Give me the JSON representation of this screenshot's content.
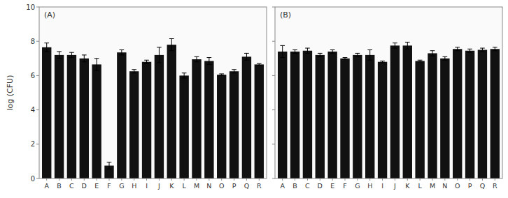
{
  "chart_data": [
    {
      "type": "bar",
      "annotations": [
        "(A)"
      ],
      "categories": [
        "A",
        "B",
        "C",
        "D",
        "E",
        "F",
        "G",
        "H",
        "I",
        "J",
        "K",
        "L",
        "M",
        "N",
        "O",
        "P",
        "Q",
        "R"
      ],
      "values": [
        7.65,
        7.2,
        7.2,
        7.0,
        6.65,
        0.75,
        7.35,
        6.25,
        6.8,
        7.2,
        7.8,
        6.0,
        6.95,
        6.85,
        6.05,
        6.25,
        7.1,
        6.65
      ],
      "errors": [
        0.25,
        0.2,
        0.15,
        0.2,
        0.35,
        0.2,
        0.15,
        0.1,
        0.1,
        0.45,
        0.35,
        0.15,
        0.15,
        0.2,
        0.05,
        0.1,
        0.2,
        0.05
      ],
      "ylabel": "log (CFU)",
      "color": "#111111",
      "ylim": [
        0,
        10
      ],
      "yticks": [
        0,
        2,
        4,
        6,
        8,
        10
      ],
      "grid": false
    },
    {
      "type": "bar",
      "annotations": [
        "(B)"
      ],
      "categories": [
        "A",
        "B",
        "C",
        "D",
        "E",
        "F",
        "G",
        "H",
        "I",
        "J",
        "K",
        "L",
        "M",
        "N",
        "O",
        "P",
        "Q",
        "R"
      ],
      "values": [
        7.4,
        7.4,
        7.45,
        7.2,
        7.4,
        7.0,
        7.2,
        7.2,
        6.8,
        7.75,
        7.75,
        6.85,
        7.3,
        7.0,
        7.55,
        7.45,
        7.5,
        7.55
      ],
      "errors": [
        0.35,
        0.1,
        0.15,
        0.1,
        0.1,
        0.05,
        0.1,
        0.3,
        0.05,
        0.15,
        0.2,
        0.05,
        0.15,
        0.1,
        0.1,
        0.1,
        0.1,
        0.1
      ],
      "color": "#111111",
      "ylim": [
        0,
        10
      ],
      "yticks": [
        0,
        2,
        4,
        6,
        8,
        10
      ],
      "grid": false,
      "tick_labels": "x"
    }
  ]
}
